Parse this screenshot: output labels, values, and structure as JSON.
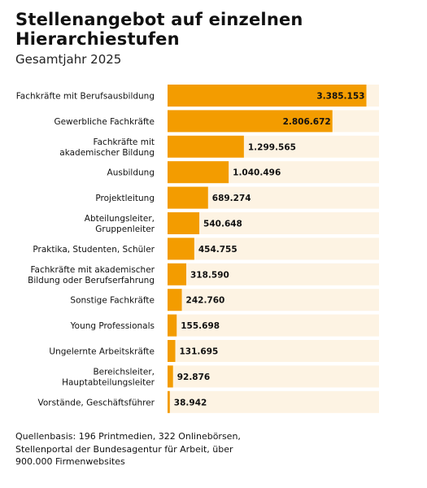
{
  "title": "Stellenangebot auf einzelnen Hierarchiestufen",
  "subtitle": "Gesamtjahr 2025",
  "source_lines": [
    "Quellenbasis: 196 Printmedien, 322 Onlinebörsen,",
    "Stellenportal der Bundesagentur für Arbeit, über",
    "900.000 Firmenwebsites"
  ],
  "colors": {
    "bar": "#f39c00",
    "track": "#fdf3e3",
    "text": "#111111"
  },
  "chart_data": {
    "type": "bar",
    "orientation": "horizontal",
    "xlim": [
      0,
      3600000
    ],
    "categories": [
      [
        "Fachkräfte mit Berufsausbildung"
      ],
      [
        "Gewerbliche Fachkräfte"
      ],
      [
        "Fachkräfte mit",
        "akademischer Bildung"
      ],
      [
        "Ausbildung"
      ],
      [
        "Projektleitung"
      ],
      [
        "Abteilungsleiter,",
        "Gruppenleiter"
      ],
      [
        "Praktika, Studenten, Schüler"
      ],
      [
        "Fachkräfte mit akademischer",
        "Bildung oder Berufserfahrung"
      ],
      [
        "Sonstige Fachkräfte"
      ],
      [
        "Young Professionals"
      ],
      [
        "Ungelernte Arbeitskräfte"
      ],
      [
        "Bereichsleiter,",
        "Hauptabteilungsleiter"
      ],
      [
        "Vorstände, Geschäftsführer"
      ]
    ],
    "values": [
      3385153,
      2806672,
      1299565,
      1040496,
      689274,
      540648,
      454755,
      318590,
      242760,
      155698,
      131695,
      92876,
      38942
    ],
    "value_labels": [
      "3.385.153",
      "2.806.672",
      "1.299.565",
      "1.040.496",
      "689.274",
      "540.648",
      "454.755",
      "318.590",
      "242.760",
      "155.698",
      "131.695",
      "92.876",
      "38.942"
    ],
    "grid": false,
    "legend": "none"
  }
}
